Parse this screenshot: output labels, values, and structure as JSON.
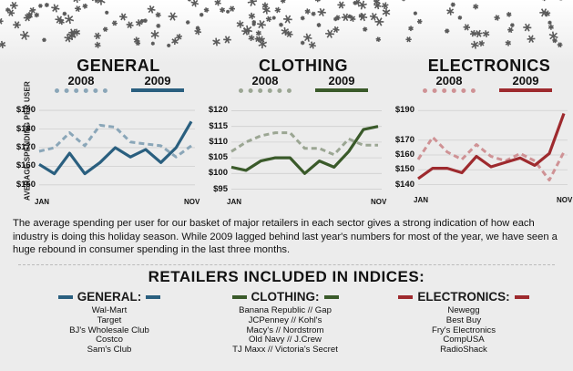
{
  "y_axis_label": "AVERAGE SPENDING PER USER",
  "legend_years": [
    "2008",
    "2009"
  ],
  "colors": {
    "general_2009": "#2a5f7f",
    "general_2008": "#8aa6b8",
    "clothing_2009": "#3a5a2a",
    "clothing_2008": "#9ba693",
    "electronics_2009": "#9e2a2e",
    "electronics_2008": "#cf9295",
    "snow": "#5a5a5a"
  },
  "description": "The average spending per user for our basket of major retailers in each sector gives a strong indication of how each industry is doing this holiday season. While 2009 lagged behind last year's numbers for most of the year, we have seen a huge rebound in consumer spending in the last three months.",
  "retailers_title": "RETAILERS INCLUDED IN INDICES:",
  "retailers": {
    "general": {
      "label": "GENERAL:",
      "items": [
        "Wal-Mart",
        "Target",
        "BJ's Wholesale Club",
        "Costco",
        "Sam's Club"
      ]
    },
    "clothing": {
      "label": "CLOTHING:",
      "items": [
        "Banana Republic // Gap",
        "JCPenney // Kohl's",
        "Macy's // Nordstrom",
        "Old Navy // J.Crew",
        "TJ Maxx // Victoria's Secret"
      ]
    },
    "electronics": {
      "label": "ELECTRONICS:",
      "items": [
        "Newegg",
        "Best Buy",
        "Fry's Electronics",
        "CompUSA",
        "RadioShack"
      ]
    }
  },
  "chart_data": [
    {
      "type": "line",
      "title": "GENERAL",
      "x_start_label": "JAN",
      "x_end_label": "NOV",
      "y_tick_labels": [
        "$190",
        "$180",
        "$170",
        "$160",
        "$150"
      ],
      "ylim": [
        146,
        192
      ],
      "series": [
        {
          "name": "2008",
          "style": "dashed",
          "values": [
            168,
            170,
            178,
            171,
            182,
            181,
            173,
            172,
            171,
            165,
            171
          ]
        },
        {
          "name": "2009",
          "style": "solid",
          "values": [
            161,
            156,
            167,
            156,
            162,
            170,
            165,
            169,
            162,
            170,
            184
          ]
        }
      ]
    },
    {
      "type": "line",
      "title": "CLOTHING",
      "x_start_label": "JAN",
      "x_end_label": "NOV",
      "y_tick_labels": [
        "$120",
        "$115",
        "$110",
        "$105",
        "$100",
        "$95"
      ],
      "ylim": [
        94,
        121
      ],
      "series": [
        {
          "name": "2008",
          "style": "dashed",
          "values": [
            107,
            110,
            112,
            113,
            113,
            108,
            108,
            106,
            111,
            109,
            109
          ]
        },
        {
          "name": "2009",
          "style": "solid",
          "values": [
            102,
            101,
            104,
            105,
            105,
            100,
            104,
            102,
            107,
            114,
            115
          ]
        }
      ]
    },
    {
      "type": "line",
      "title": "ELECTRONICS",
      "x_start_label": "JAN",
      "x_end_label": "NOV",
      "y_tick_labels": [
        "$190",
        "$170",
        "$160",
        "$150",
        "$140"
      ],
      "ylim": [
        136,
        192
      ],
      "series": [
        {
          "name": "2008",
          "style": "dashed",
          "values": [
            157,
            172,
            162,
            157,
            167,
            159,
            156,
            161,
            156,
            143,
            162
          ]
        },
        {
          "name": "2009",
          "style": "solid",
          "values": [
            144,
            151,
            151,
            148,
            159,
            152,
            155,
            158,
            153,
            161,
            188
          ]
        }
      ]
    }
  ]
}
